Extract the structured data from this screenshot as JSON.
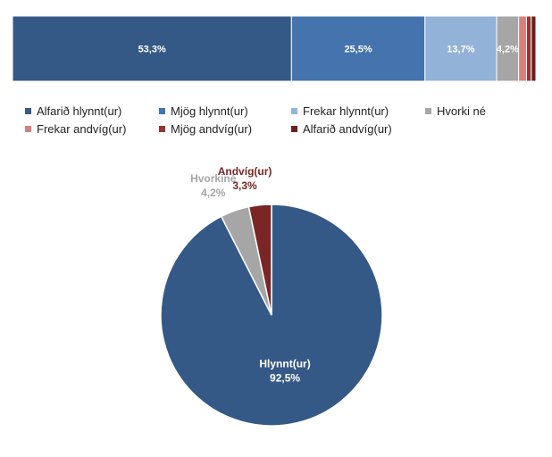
{
  "chart_data": [
    {
      "type": "bar",
      "orientation": "horizontal",
      "stacked": true,
      "series": [
        {
          "name": "Alfarið hlynnt(ur)",
          "value": 53.3,
          "label": "53,3%",
          "color": "#355987"
        },
        {
          "name": "Mjög hlynnt(ur)",
          "value": 25.5,
          "label": "25,5%",
          "color": "#4473AE"
        },
        {
          "name": "Frekar hlynnt(ur)",
          "value": 13.7,
          "label": "13,7%",
          "color": "#93B2D8"
        },
        {
          "name": "Hvorki né",
          "value": 4.2,
          "label": "4,2%",
          "color": "#A6A6A6"
        },
        {
          "name": "Frekar andvíg(ur)",
          "value": 1.5,
          "label": "",
          "color": "#D97E7E"
        },
        {
          "name": "Mjög andvíg(ur)",
          "value": 0.9,
          "label": "",
          "color": "#943533"
        },
        {
          "name": "Alfarið andvíg(ur)",
          "value": 0.9,
          "label": "",
          "color": "#6F1E1E"
        }
      ],
      "legend": "bottom"
    },
    {
      "type": "pie",
      "slices": [
        {
          "name": "Hlynnt(ur)",
          "value": 92.5,
          "label": "92,5%",
          "color": "#355987",
          "label_color": "#ffffff"
        },
        {
          "name": "Hvorkiné",
          "value": 4.2,
          "label": "4,2%",
          "color": "#A6A6A6",
          "label_color": "#A6A6A6"
        },
        {
          "name": "Andvíg(ur)",
          "value": 3.3,
          "label": "3,3%",
          "color": "#7A2626",
          "label_color": "#7A2626"
        }
      ]
    }
  ]
}
